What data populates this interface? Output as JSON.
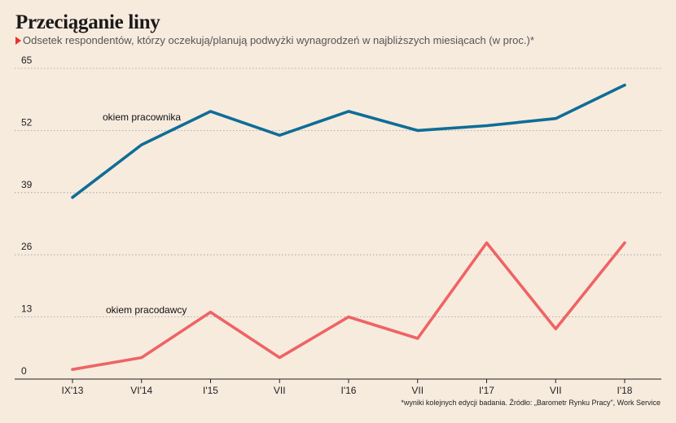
{
  "title": "Przeciąganie liny",
  "subtitle": "Odsetek respondentów, którzy oczekują/planują podwyżki wynagrodzeń w najbliższych miesiącach (w proc.)*",
  "footnote": "*wyniki kolejnych edycji badania. Źródło: „Barometr Rynku Pracy\", Work Service",
  "colors": {
    "employee": "#0f6d96",
    "employer": "#ee6464",
    "grid": "#9a9a9a",
    "marker": "#e8322b"
  },
  "chart_data": {
    "type": "line",
    "title": "Przeciąganie liny",
    "xlabel": "",
    "ylabel": "",
    "categories": [
      "IX'13",
      "VI'14",
      "I'15",
      "VII",
      "I'16",
      "VII",
      "I'17",
      "VII",
      "I'18"
    ],
    "ylim": [
      0,
      65
    ],
    "yticks": [
      0,
      13,
      26,
      39,
      52,
      65
    ],
    "grid": true,
    "series": [
      {
        "name": "okiem pracownika",
        "color": "#0f6d96",
        "values": [
          38,
          49,
          56,
          51,
          56,
          52,
          53,
          54.5,
          61.5
        ]
      },
      {
        "name": "okiem pracodawcy",
        "color": "#ee6464",
        "values": [
          2,
          4.5,
          14,
          4.5,
          13,
          8.5,
          28.5,
          10.5,
          28.5
        ]
      }
    ]
  }
}
